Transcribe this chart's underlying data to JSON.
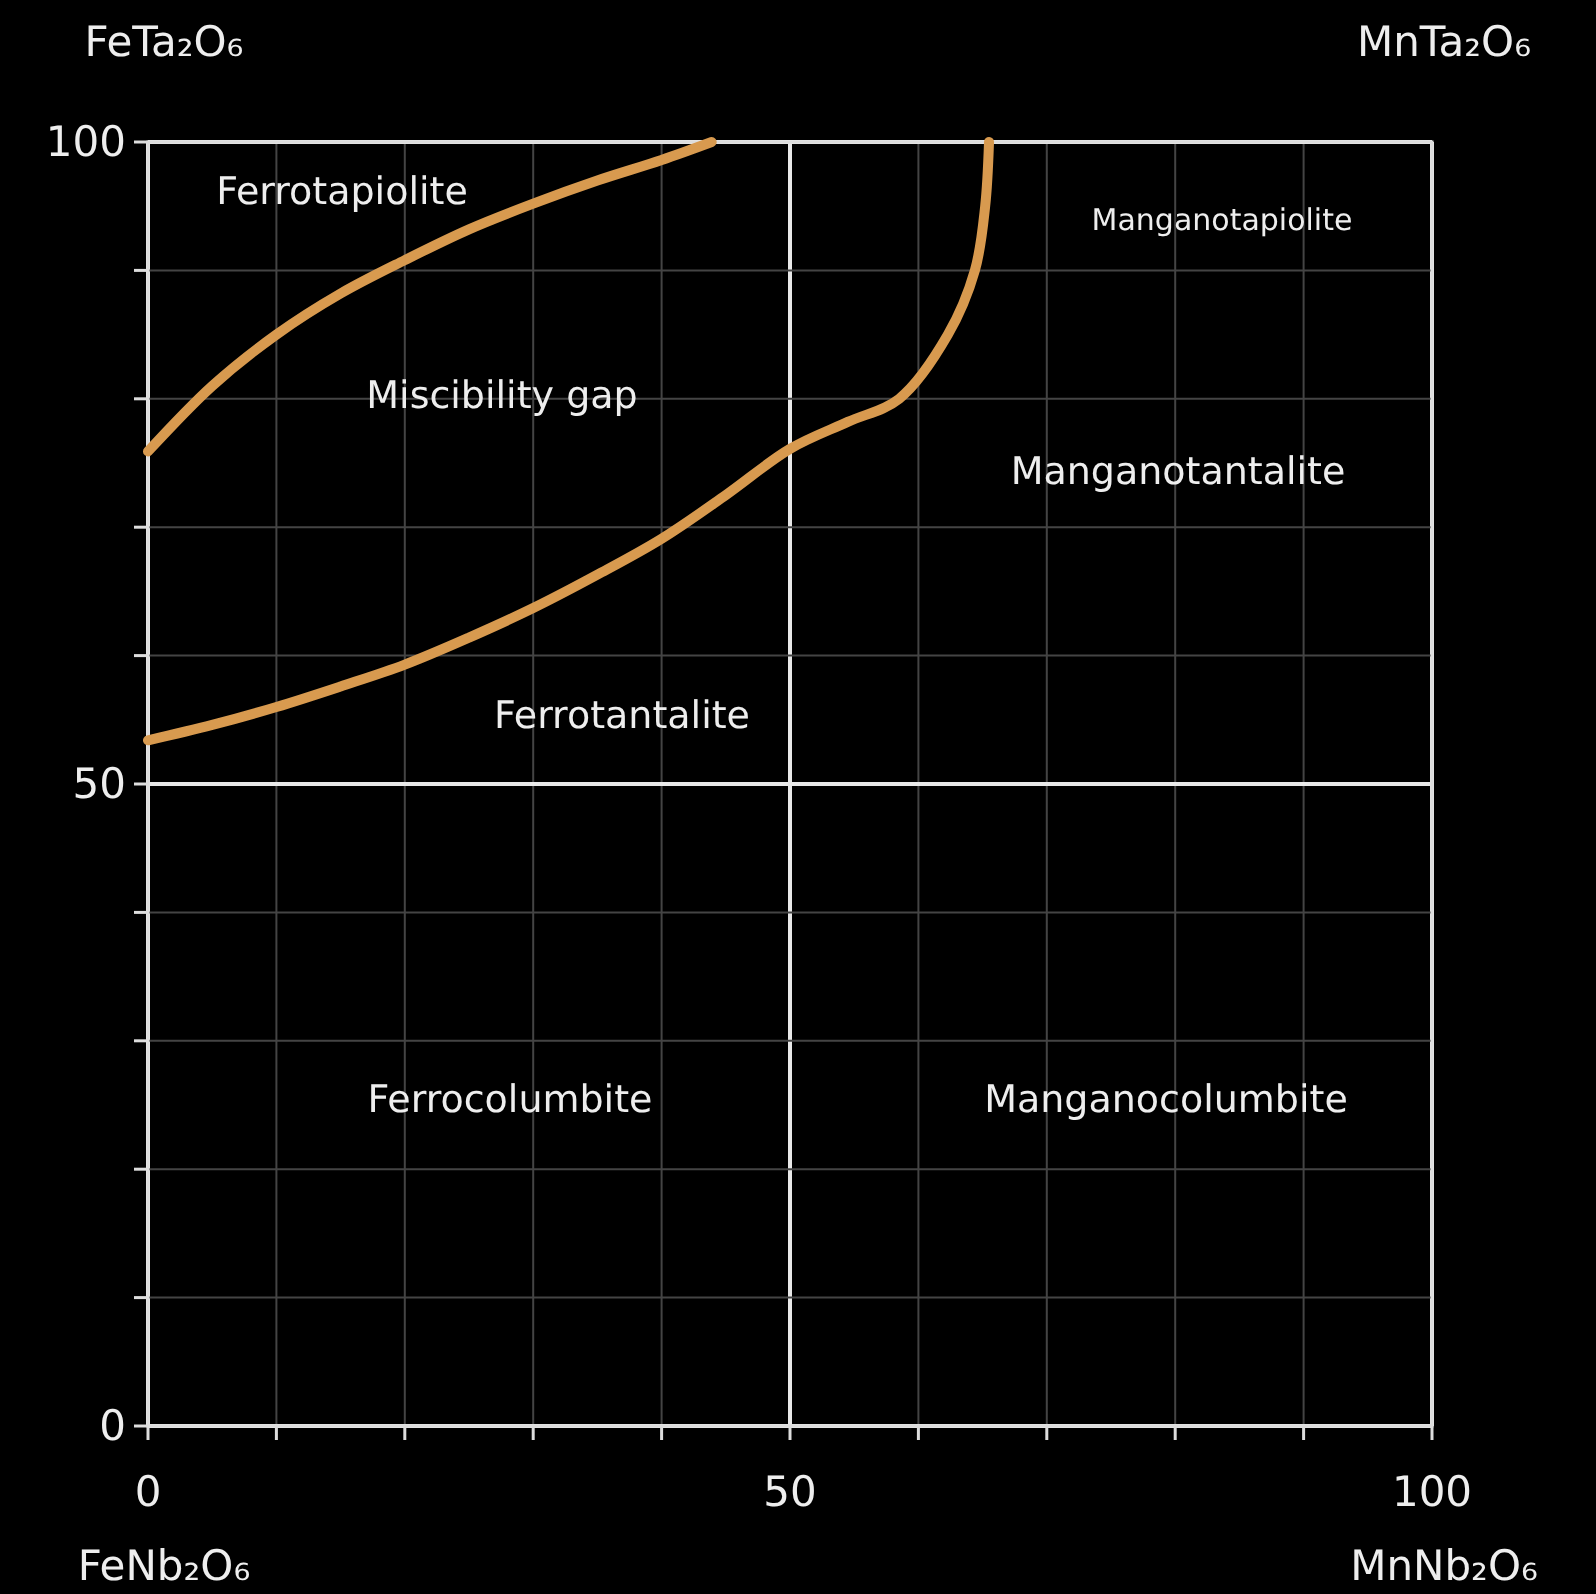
{
  "chart_data": {
    "type": "line",
    "xlim": [
      0,
      100
    ],
    "ylim": [
      0,
      100
    ],
    "xticks": [
      0,
      {
        "value": 10,
        "label": null
      },
      {
        "value": 20,
        "label": null
      },
      {
        "value": 30,
        "label": null
      },
      {
        "value": 40,
        "label": null
      },
      50,
      {
        "value": 60,
        "label": null
      },
      {
        "value": 70,
        "label": null
      },
      {
        "value": 80,
        "label": null
      },
      {
        "value": 90,
        "label": null
      },
      100
    ],
    "yticks": [
      0,
      {
        "value": 10,
        "label": null
      },
      {
        "value": 20,
        "label": null
      },
      {
        "value": 30,
        "label": null
      },
      {
        "value": 40,
        "label": null
      },
      50,
      {
        "value": 60,
        "label": null
      },
      {
        "value": 70,
        "label": null
      },
      {
        "value": 80,
        "label": null
      },
      {
        "value": 90,
        "label": null
      },
      100
    ],
    "grid": true,
    "marker": "none",
    "line_style": "solid",
    "series": [
      {
        "color": "#d89a4f",
        "x": [
          0,
          5,
          10,
          15,
          20,
          25,
          30,
          35,
          40,
          43.9
        ],
        "values": [
          75.9,
          81,
          85,
          88.2,
          90.8,
          93.2,
          95.2,
          97,
          98.6,
          100
        ]
      },
      {
        "color": "#d89a4f",
        "x": [
          65.5,
          65.2,
          64.4,
          62.3,
          58.5,
          54.5,
          50,
          45,
          40,
          35,
          30,
          25,
          20,
          15,
          10,
          5,
          0
        ],
        "values": [
          100,
          95,
          90,
          85,
          80,
          78.2,
          76.1,
          72.5,
          69.1,
          66.3,
          63.7,
          61.4,
          59.3,
          57.6,
          56,
          54.6,
          53.4
        ]
      }
    ],
    "annotations": [
      "FeTa₂O₆",
      "MnTa₂O₆",
      "FeNb₂O₆",
      "MnNb₂O₆",
      "Ferrotapiolite",
      "Miscibility gap",
      "Manganotapiolite",
      "Manganotantalite",
      "Ferrotantalite",
      "Ferrocolumbite",
      "Manganocolumbite"
    ]
  }
}
